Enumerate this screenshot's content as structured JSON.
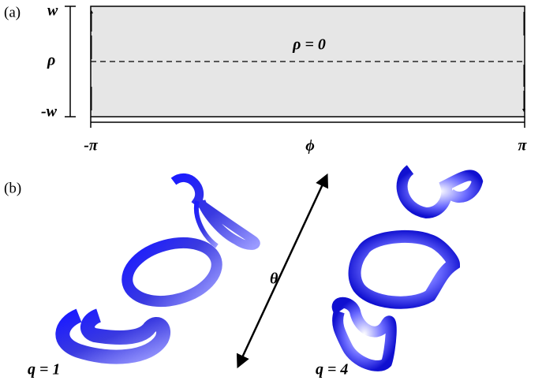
{
  "panel_a": {
    "label": "(a)",
    "y_top": "w",
    "y_label": "ρ",
    "y_bottom": "-w",
    "line_label": "ρ = 0",
    "x_left": "-π",
    "x_label": "ϕ",
    "x_right": "π"
  },
  "panel_b": {
    "label": "(b)",
    "axis_label": "θ",
    "left_label": "q = 1",
    "right_label": "q = 4"
  }
}
